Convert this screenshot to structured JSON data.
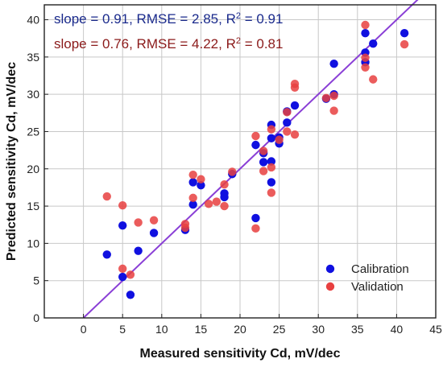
{
  "chart_data": {
    "type": "scatter",
    "xlabel": "Measured sensitivity Cd, mV/dec",
    "ylabel": "Predicted sensitivity Cd, mV/dec",
    "xlim": [
      -5,
      45
    ],
    "ylim": [
      0,
      42
    ],
    "x_ticks": [
      0,
      5,
      10,
      15,
      20,
      25,
      30,
      35,
      40,
      45
    ],
    "y_ticks": [
      0,
      5,
      10,
      15,
      20,
      25,
      30,
      35,
      40
    ],
    "grid": true,
    "legend_position": "bottom-right",
    "fit_line": {
      "slope": 1,
      "intercept": 0,
      "x_range": [
        0,
        44
      ],
      "color": "#8a3fd6"
    },
    "annotations": [
      {
        "parts": [
          {
            "text": "slope = 0.91, RMSE = 2.85, R"
          },
          {
            "text": "2",
            "sup": true
          },
          {
            "text": " = 0.91"
          }
        ],
        "color": "#1a2a8c"
      },
      {
        "parts": [
          {
            "text": "slope = 0.76, RMSE = 4.22, R"
          },
          {
            "text": "2",
            "sup": true
          },
          {
            "text": " = 0.81"
          }
        ],
        "color": "#8b1a1a"
      }
    ],
    "series": [
      {
        "name": "Calibration",
        "color": "#1010e0",
        "points": [
          [
            3,
            8.5
          ],
          [
            5,
            12.4
          ],
          [
            5,
            5.5
          ],
          [
            6,
            3.1
          ],
          [
            7,
            9.0
          ],
          [
            9,
            11.4
          ],
          [
            13,
            11.8
          ],
          [
            14,
            18.2
          ],
          [
            14,
            15.2
          ],
          [
            15,
            17.8
          ],
          [
            18,
            16.7
          ],
          [
            18,
            16.2
          ],
          [
            19,
            19.3
          ],
          [
            22,
            23.2
          ],
          [
            22,
            13.4
          ],
          [
            23,
            22.1
          ],
          [
            23,
            20.9
          ],
          [
            24,
            25.9
          ],
          [
            24,
            24.1
          ],
          [
            24,
            21.0
          ],
          [
            24,
            18.2
          ],
          [
            25,
            23.4
          ],
          [
            25,
            24.2
          ],
          [
            26,
            27.7
          ],
          [
            26,
            26.2
          ],
          [
            27,
            28.5
          ],
          [
            31,
            29.4
          ],
          [
            32,
            34.1
          ],
          [
            32,
            30.0
          ],
          [
            36,
            38.2
          ],
          [
            36,
            35.6
          ],
          [
            36,
            34.3
          ],
          [
            37,
            36.8
          ],
          [
            41,
            38.2
          ]
        ]
      },
      {
        "name": "Validation",
        "color": "#e84040",
        "points": [
          [
            3,
            16.3
          ],
          [
            5,
            15.1
          ],
          [
            5,
            6.6
          ],
          [
            6,
            5.8
          ],
          [
            7,
            12.8
          ],
          [
            9,
            13.1
          ],
          [
            13,
            12.6
          ],
          [
            13,
            12.1
          ],
          [
            14,
            19.2
          ],
          [
            14,
            16.1
          ],
          [
            15,
            18.6
          ],
          [
            16,
            15.3
          ],
          [
            17,
            15.6
          ],
          [
            18,
            17.9
          ],
          [
            18,
            15.0
          ],
          [
            19,
            19.6
          ],
          [
            22,
            24.4
          ],
          [
            22,
            12.0
          ],
          [
            23,
            22.4
          ],
          [
            23,
            19.7
          ],
          [
            24,
            25.3
          ],
          [
            24,
            20.2
          ],
          [
            24,
            16.8
          ],
          [
            25,
            23.9
          ],
          [
            26,
            27.6
          ],
          [
            26,
            25.0
          ],
          [
            27,
            31.4
          ],
          [
            27,
            30.9
          ],
          [
            27,
            24.6
          ],
          [
            31,
            29.5
          ],
          [
            32,
            29.8
          ],
          [
            32,
            27.8
          ],
          [
            36,
            39.3
          ],
          [
            36,
            34.9
          ],
          [
            36,
            33.6
          ],
          [
            37,
            32.0
          ],
          [
            41,
            36.7
          ]
        ]
      }
    ]
  }
}
